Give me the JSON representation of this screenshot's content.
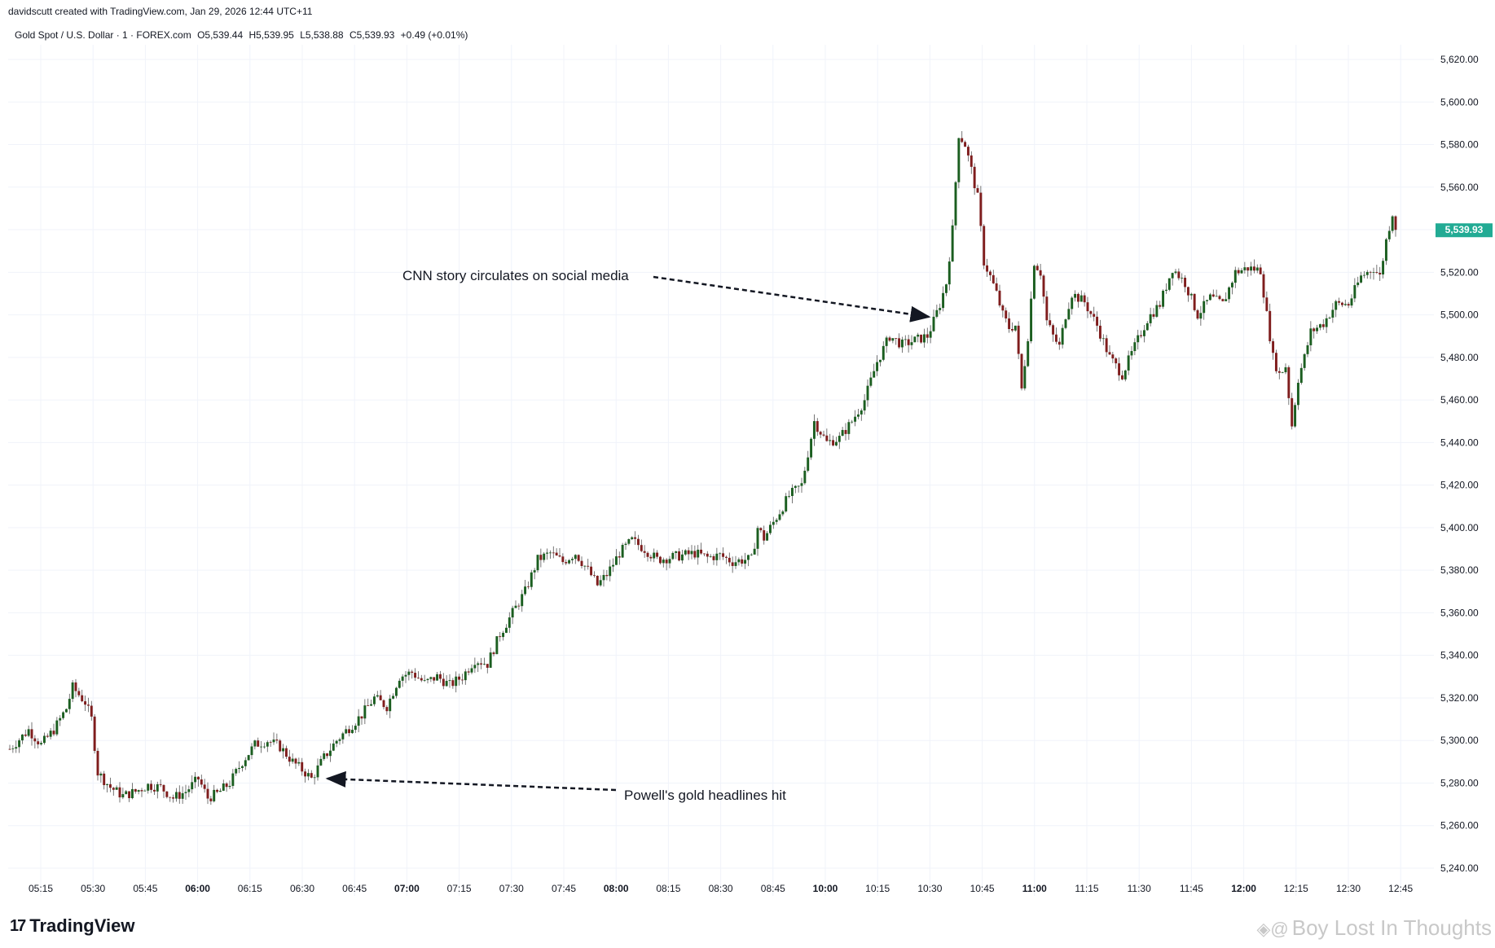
{
  "header": {
    "credit": "davidscutt created with TradingView.com, Jan 29, 2026 12:44 UTC+11"
  },
  "symbol": {
    "name": "Gold Spot / U.S. Dollar · 1 · FOREX.com",
    "open": "O5,539.44",
    "high": "H5,539.95",
    "low": "L5,538.88",
    "close": "C5,539.93",
    "change": "+0.49 (+0.01%)"
  },
  "colors": {
    "up": "#1b5e20",
    "down": "#7f1d1d",
    "grid": "#f0f3fa",
    "price_tag": "#22ab94"
  },
  "chart_data": {
    "type": "candlestick",
    "ylim": [
      5235,
      5630
    ],
    "y_ticks": [
      "5,240.00",
      "5,260.00",
      "5,280.00",
      "5,300.00",
      "5,320.00",
      "5,340.00",
      "5,360.00",
      "5,380.00",
      "5,400.00",
      "5,420.00",
      "5,440.00",
      "5,460.00",
      "5,480.00",
      "5,500.00",
      "5,520.00",
      "5,540.00",
      "5,560.00",
      "5,580.00",
      "5,600.00",
      "5,620.00"
    ],
    "x_ticks": [
      {
        "label": "05:15",
        "bold": false
      },
      {
        "label": "05:30",
        "bold": false
      },
      {
        "label": "05:45",
        "bold": false
      },
      {
        "label": "06:00",
        "bold": true
      },
      {
        "label": "06:15",
        "bold": false
      },
      {
        "label": "06:30",
        "bold": false
      },
      {
        "label": "06:45",
        "bold": false
      },
      {
        "label": "07:00",
        "bold": true
      },
      {
        "label": "07:15",
        "bold": false
      },
      {
        "label": "07:30",
        "bold": false
      },
      {
        "label": "07:45",
        "bold": false
      },
      {
        "label": "08:00",
        "bold": true
      },
      {
        "label": "08:15",
        "bold": false
      },
      {
        "label": "08:30",
        "bold": false
      },
      {
        "label": "08:45",
        "bold": false
      },
      {
        "label": "10:00",
        "bold": true
      },
      {
        "label": "10:15",
        "bold": false
      },
      {
        "label": "10:30",
        "bold": false
      },
      {
        "label": "10:45",
        "bold": false
      },
      {
        "label": "11:00",
        "bold": true
      },
      {
        "label": "11:15",
        "bold": false
      },
      {
        "label": "11:30",
        "bold": false
      },
      {
        "label": "11:45",
        "bold": false
      },
      {
        "label": "12:00",
        "bold": true
      },
      {
        "label": "12:15",
        "bold": false
      },
      {
        "label": "12:30",
        "bold": false
      },
      {
        "label": "12:45",
        "bold": false
      }
    ],
    "last_price": "5,539.93",
    "last_price_value": 5539.93,
    "price_path": [
      [
        0,
        5296
      ],
      [
        6,
        5305
      ],
      [
        10,
        5298
      ],
      [
        14,
        5305
      ],
      [
        18,
        5315
      ],
      [
        20,
        5325
      ],
      [
        24,
        5318
      ],
      [
        26,
        5310
      ],
      [
        28,
        5285
      ],
      [
        32,
        5278
      ],
      [
        36,
        5274
      ],
      [
        40,
        5276
      ],
      [
        44,
        5279
      ],
      [
        48,
        5278
      ],
      [
        52,
        5273
      ],
      [
        56,
        5276
      ],
      [
        60,
        5282
      ],
      [
        63,
        5273
      ],
      [
        66,
        5275
      ],
      [
        70,
        5280
      ],
      [
        74,
        5290
      ],
      [
        78,
        5298
      ],
      [
        82,
        5300
      ],
      [
        86,
        5297
      ],
      [
        90,
        5290
      ],
      [
        94,
        5285
      ],
      [
        96,
        5282
      ],
      [
        100,
        5292
      ],
      [
        104,
        5300
      ],
      [
        108,
        5306
      ],
      [
        112,
        5312
      ],
      [
        116,
        5320
      ],
      [
        120,
        5316
      ],
      [
        124,
        5330
      ],
      [
        128,
        5332
      ],
      [
        132,
        5327
      ],
      [
        136,
        5330
      ],
      [
        140,
        5326
      ],
      [
        144,
        5330
      ],
      [
        148,
        5338
      ],
      [
        152,
        5336
      ],
      [
        156,
        5350
      ],
      [
        160,
        5360
      ],
      [
        164,
        5370
      ],
      [
        168,
        5385
      ],
      [
        172,
        5388
      ],
      [
        176,
        5384
      ],
      [
        180,
        5388
      ],
      [
        184,
        5380
      ],
      [
        187,
        5373
      ],
      [
        190,
        5378
      ],
      [
        194,
        5388
      ],
      [
        198,
        5394
      ],
      [
        202,
        5390
      ],
      [
        206,
        5385
      ],
      [
        210,
        5386
      ],
      [
        214,
        5387
      ],
      [
        218,
        5388
      ],
      [
        222,
        5386
      ],
      [
        226,
        5387
      ],
      [
        230,
        5384
      ],
      [
        234,
        5385
      ],
      [
        236,
        5385
      ],
      [
        238,
        5400
      ],
      [
        240,
        5395
      ],
      [
        244,
        5405
      ],
      [
        248,
        5415
      ],
      [
        252,
        5420
      ],
      [
        256,
        5450
      ],
      [
        260,
        5440
      ],
      [
        264,
        5442
      ],
      [
        268,
        5450
      ],
      [
        272,
        5460
      ],
      [
        276,
        5478
      ],
      [
        280,
        5490
      ],
      [
        284,
        5486
      ],
      [
        288,
        5488
      ],
      [
        292,
        5490
      ],
      [
        294,
        5497
      ],
      [
        296,
        5505
      ],
      [
        298,
        5515
      ],
      [
        300,
        5540
      ],
      [
        302,
        5585
      ],
      [
        304,
        5580
      ],
      [
        306,
        5568
      ],
      [
        308,
        5555
      ],
      [
        310,
        5525
      ],
      [
        312,
        5518
      ],
      [
        314,
        5510
      ],
      [
        316,
        5500
      ],
      [
        318,
        5494
      ],
      [
        320,
        5495
      ],
      [
        322,
        5465
      ],
      [
        324,
        5490
      ],
      [
        326,
        5525
      ],
      [
        328,
        5520
      ],
      [
        330,
        5497
      ],
      [
        332,
        5490
      ],
      [
        334,
        5485
      ],
      [
        336,
        5500
      ],
      [
        338,
        5510
      ],
      [
        342,
        5506
      ],
      [
        346,
        5495
      ],
      [
        350,
        5480
      ],
      [
        354,
        5472
      ],
      [
        358,
        5485
      ],
      [
        362,
        5498
      ],
      [
        366,
        5505
      ],
      [
        370,
        5522
      ],
      [
        374,
        5515
      ],
      [
        378,
        5500
      ],
      [
        382,
        5508
      ],
      [
        386,
        5505
      ],
      [
        390,
        5520
      ],
      [
        394,
        5522
      ],
      [
        398,
        5521
      ],
      [
        400,
        5500
      ],
      [
        402,
        5480
      ],
      [
        404,
        5472
      ],
      [
        406,
        5476
      ],
      [
        408,
        5448
      ],
      [
        410,
        5470
      ],
      [
        412,
        5480
      ],
      [
        414,
        5492
      ],
      [
        418,
        5496
      ],
      [
        422,
        5505
      ],
      [
        426,
        5505
      ],
      [
        430,
        5518
      ],
      [
        434,
        5522
      ],
      [
        436,
        5518
      ],
      [
        438,
        5535
      ],
      [
        440,
        5548
      ],
      [
        441,
        5539.93
      ]
    ]
  },
  "annotations": [
    {
      "text": "CNN story circulates on social media"
    },
    {
      "text": "Powell's gold headlines hit"
    }
  ],
  "branding": {
    "logo_text": "TradingView",
    "logo_mark": "17",
    "watermark": "Boy Lost In Thoughts"
  }
}
